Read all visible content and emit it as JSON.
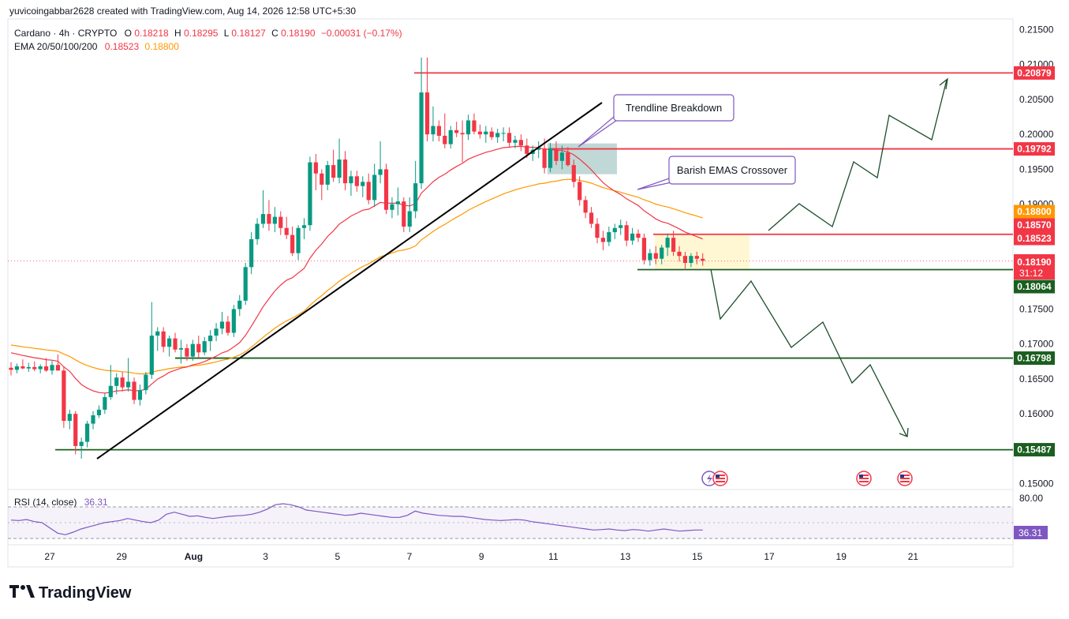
{
  "header": {
    "attribution": "yuvicoingabbar2628 created with TradingView.com, Aug 14, 2026 12:58 UTC+5:30",
    "symbol_line": "Cardano · 4h · CRYPTO",
    "open_label": "O",
    "open": "0.18218",
    "high_label": "H",
    "high": "0.18295",
    "low_label": "L",
    "low": "0.18127",
    "close_label": "C",
    "close": "0.18190",
    "change": "−0.00031 (−0.17%)",
    "ema_label": "EMA 20/50/100/200",
    "ema_value_1": "0.18523",
    "ema_value_2": "0.18800"
  },
  "rsi": {
    "label": "RSI (14, close)",
    "value": "36.31",
    "upper_band": "80.00",
    "badge": "36.31"
  },
  "annotations": {
    "trendline_breakdown": "Trendline Breakdown",
    "ema_crossover": "Barish EMAS Crossover"
  },
  "badges": {
    "r_20879": "0.20879",
    "r_19792": "0.19792",
    "ema_18800": "0.18800",
    "lvl_18570": "0.18570",
    "ema_18523": "0.18523",
    "price": "0.18190",
    "countdown": "31:12",
    "s_18064": "0.18064",
    "s_16798": "0.16798",
    "s_15487": "0.15487"
  },
  "footer": {
    "logo_text": "TradingView"
  },
  "colors": {
    "up": "#089981",
    "down": "#f23645",
    "ema_fast": "#f23645",
    "ema_slow": "#ff9800",
    "resistance": "#f23645",
    "support": "#1b5e20",
    "rsi": "#7e57c2",
    "trendline": "#000000"
  },
  "chart_data": {
    "type": "candlestick",
    "symbol": "Cardano",
    "timeframe": "4h",
    "ylim": [
      0.1494,
      0.2155
    ],
    "y_ticks": [
      "0.21500",
      "0.21000",
      "0.20500",
      "0.20000",
      "0.19500",
      "0.19000",
      "0.18500",
      "0.18000",
      "0.17500",
      "0.17000",
      "0.16500",
      "0.16000",
      "0.15500",
      "0.15000"
    ],
    "x_ticks": [
      {
        "label": "27",
        "day": 27
      },
      {
        "label": "29",
        "day": 29
      },
      {
        "label": "Aug",
        "day": 31
      },
      {
        "label": "3",
        "day": 33
      },
      {
        "label": "5",
        "day": 35
      },
      {
        "label": "7",
        "day": 37
      },
      {
        "label": "9",
        "day": 39
      },
      {
        "label": "11",
        "day": 41
      },
      {
        "label": "13",
        "day": 43
      },
      {
        "label": "15",
        "day": 45
      },
      {
        "label": "17",
        "day": 47
      },
      {
        "label": "19",
        "day": 49
      },
      {
        "label": "21",
        "day": 51
      }
    ],
    "candles": [
      {
        "o": 0.1666,
        "h": 0.1674,
        "l": 0.1655,
        "c": 0.1663
      },
      {
        "o": 0.1663,
        "h": 0.1672,
        "l": 0.1658,
        "c": 0.1668
      },
      {
        "o": 0.1668,
        "h": 0.1678,
        "l": 0.1664,
        "c": 0.1665
      },
      {
        "o": 0.1665,
        "h": 0.1673,
        "l": 0.166,
        "c": 0.1667
      },
      {
        "o": 0.1667,
        "h": 0.1675,
        "l": 0.1661,
        "c": 0.1664
      },
      {
        "o": 0.1664,
        "h": 0.1671,
        "l": 0.1658,
        "c": 0.1668
      },
      {
        "o": 0.1668,
        "h": 0.168,
        "l": 0.166,
        "c": 0.1662
      },
      {
        "o": 0.1662,
        "h": 0.1676,
        "l": 0.1656,
        "c": 0.167
      },
      {
        "o": 0.167,
        "h": 0.1685,
        "l": 0.1664,
        "c": 0.1662
      },
      {
        "o": 0.1662,
        "h": 0.1668,
        "l": 0.158,
        "c": 0.159
      },
      {
        "o": 0.159,
        "h": 0.1606,
        "l": 0.1578,
        "c": 0.16
      },
      {
        "o": 0.16,
        "h": 0.1604,
        "l": 0.1542,
        "c": 0.1554
      },
      {
        "o": 0.1554,
        "h": 0.1566,
        "l": 0.1536,
        "c": 0.156
      },
      {
        "o": 0.156,
        "h": 0.159,
        "l": 0.1552,
        "c": 0.1586
      },
      {
        "o": 0.1586,
        "h": 0.1604,
        "l": 0.1578,
        "c": 0.1598
      },
      {
        "o": 0.1598,
        "h": 0.1612,
        "l": 0.1594,
        "c": 0.1606
      },
      {
        "o": 0.1606,
        "h": 0.163,
        "l": 0.16,
        "c": 0.1624
      },
      {
        "o": 0.1624,
        "h": 0.167,
        "l": 0.162,
        "c": 0.164
      },
      {
        "o": 0.164,
        "h": 0.1658,
        "l": 0.1628,
        "c": 0.1652
      },
      {
        "o": 0.1652,
        "h": 0.166,
        "l": 0.1632,
        "c": 0.1638
      },
      {
        "o": 0.1638,
        "h": 0.168,
        "l": 0.1632,
        "c": 0.1646
      },
      {
        "o": 0.1646,
        "h": 0.1652,
        "l": 0.1614,
        "c": 0.162
      },
      {
        "o": 0.162,
        "h": 0.1642,
        "l": 0.1612,
        "c": 0.1634
      },
      {
        "o": 0.1634,
        "h": 0.166,
        "l": 0.1628,
        "c": 0.1656
      },
      {
        "o": 0.1656,
        "h": 0.176,
        "l": 0.165,
        "c": 0.1712
      },
      {
        "o": 0.1712,
        "h": 0.1724,
        "l": 0.169,
        "c": 0.1718
      },
      {
        "o": 0.1718,
        "h": 0.1724,
        "l": 0.1688,
        "c": 0.1696
      },
      {
        "o": 0.1696,
        "h": 0.1712,
        "l": 0.1682,
        "c": 0.1708
      },
      {
        "o": 0.1708,
        "h": 0.1716,
        "l": 0.1688,
        "c": 0.1692
      },
      {
        "o": 0.1692,
        "h": 0.1706,
        "l": 0.1672,
        "c": 0.1694
      },
      {
        "o": 0.1694,
        "h": 0.17,
        "l": 0.1676,
        "c": 0.1682
      },
      {
        "o": 0.1682,
        "h": 0.1706,
        "l": 0.1676,
        "c": 0.17
      },
      {
        "o": 0.17,
        "h": 0.1712,
        "l": 0.168,
        "c": 0.1688
      },
      {
        "o": 0.1688,
        "h": 0.171,
        "l": 0.1684,
        "c": 0.1704
      },
      {
        "o": 0.1704,
        "h": 0.172,
        "l": 0.169,
        "c": 0.1712
      },
      {
        "o": 0.1712,
        "h": 0.173,
        "l": 0.1704,
        "c": 0.1722
      },
      {
        "o": 0.1722,
        "h": 0.1746,
        "l": 0.1714,
        "c": 0.1732
      },
      {
        "o": 0.1732,
        "h": 0.174,
        "l": 0.1712,
        "c": 0.1716
      },
      {
        "o": 0.1716,
        "h": 0.1756,
        "l": 0.171,
        "c": 0.175
      },
      {
        "o": 0.175,
        "h": 0.177,
        "l": 0.174,
        "c": 0.1762
      },
      {
        "o": 0.1762,
        "h": 0.1816,
        "l": 0.1756,
        "c": 0.181
      },
      {
        "o": 0.181,
        "h": 0.186,
        "l": 0.18,
        "c": 0.185
      },
      {
        "o": 0.185,
        "h": 0.188,
        "l": 0.1842,
        "c": 0.1872
      },
      {
        "o": 0.1872,
        "h": 0.192,
        "l": 0.1866,
        "c": 0.1886
      },
      {
        "o": 0.1886,
        "h": 0.1906,
        "l": 0.1862,
        "c": 0.1872
      },
      {
        "o": 0.1872,
        "h": 0.1896,
        "l": 0.186,
        "c": 0.1882
      },
      {
        "o": 0.1882,
        "h": 0.189,
        "l": 0.1856,
        "c": 0.1866
      },
      {
        "o": 0.1866,
        "h": 0.1882,
        "l": 0.185,
        "c": 0.1856
      },
      {
        "o": 0.1856,
        "h": 0.1868,
        "l": 0.1826,
        "c": 0.183
      },
      {
        "o": 0.183,
        "h": 0.187,
        "l": 0.182,
        "c": 0.1866
      },
      {
        "o": 0.1866,
        "h": 0.188,
        "l": 0.185,
        "c": 0.187
      },
      {
        "o": 0.187,
        "h": 0.1968,
        "l": 0.1862,
        "c": 0.196
      },
      {
        "o": 0.196,
        "h": 0.1972,
        "l": 0.192,
        "c": 0.1944
      },
      {
        "o": 0.1944,
        "h": 0.195,
        "l": 0.1906,
        "c": 0.1928
      },
      {
        "o": 0.1928,
        "h": 0.1962,
        "l": 0.192,
        "c": 0.1956
      },
      {
        "o": 0.1956,
        "h": 0.1978,
        "l": 0.1932,
        "c": 0.1938
      },
      {
        "o": 0.1938,
        "h": 0.1994,
        "l": 0.193,
        "c": 0.1964
      },
      {
        "o": 0.1964,
        "h": 0.1976,
        "l": 0.192,
        "c": 0.193
      },
      {
        "o": 0.193,
        "h": 0.1948,
        "l": 0.1912,
        "c": 0.194
      },
      {
        "o": 0.194,
        "h": 0.1948,
        "l": 0.1918,
        "c": 0.1926
      },
      {
        "o": 0.1926,
        "h": 0.194,
        "l": 0.191,
        "c": 0.1932
      },
      {
        "o": 0.1932,
        "h": 0.1944,
        "l": 0.19,
        "c": 0.1906
      },
      {
        "o": 0.1906,
        "h": 0.1958,
        "l": 0.1896,
        "c": 0.1942
      },
      {
        "o": 0.1942,
        "h": 0.199,
        "l": 0.193,
        "c": 0.195
      },
      {
        "o": 0.195,
        "h": 0.1958,
        "l": 0.1886,
        "c": 0.1892
      },
      {
        "o": 0.1892,
        "h": 0.191,
        "l": 0.188,
        "c": 0.19
      },
      {
        "o": 0.19,
        "h": 0.1924,
        "l": 0.1884,
        "c": 0.1904
      },
      {
        "o": 0.1904,
        "h": 0.191,
        "l": 0.186,
        "c": 0.1868
      },
      {
        "o": 0.1868,
        "h": 0.191,
        "l": 0.186,
        "c": 0.189
      },
      {
        "o": 0.189,
        "h": 0.1962,
        "l": 0.188,
        "c": 0.193
      },
      {
        "o": 0.193,
        "h": 0.211,
        "l": 0.1922,
        "c": 0.206
      },
      {
        "o": 0.206,
        "h": 0.211,
        "l": 0.199,
        "c": 0.2
      },
      {
        "o": 0.2,
        "h": 0.204,
        "l": 0.199,
        "c": 0.2012
      },
      {
        "o": 0.2012,
        "h": 0.202,
        "l": 0.199,
        "c": 0.1998
      },
      {
        "o": 0.1998,
        "h": 0.203,
        "l": 0.198,
        "c": 0.1986
      },
      {
        "o": 0.1986,
        "h": 0.2012,
        "l": 0.198,
        "c": 0.2006
      },
      {
        "o": 0.2006,
        "h": 0.2018,
        "l": 0.1996,
        "c": 0.2002
      },
      {
        "o": 0.2002,
        "h": 0.202,
        "l": 0.196,
        "c": 0.2
      },
      {
        "o": 0.2,
        "h": 0.2028,
        "l": 0.1992,
        "c": 0.202
      },
      {
        "o": 0.202,
        "h": 0.203,
        "l": 0.2,
        "c": 0.2004
      },
      {
        "o": 0.2004,
        "h": 0.2014,
        "l": 0.1994,
        "c": 0.2
      },
      {
        "o": 0.2,
        "h": 0.2012,
        "l": 0.1988,
        "c": 0.2004
      },
      {
        "o": 0.2004,
        "h": 0.201,
        "l": 0.1992,
        "c": 0.1996
      },
      {
        "o": 0.1996,
        "h": 0.2008,
        "l": 0.1988,
        "c": 0.2002
      },
      {
        "o": 0.2002,
        "h": 0.201,
        "l": 0.199,
        "c": 0.2002
      },
      {
        "o": 0.2002,
        "h": 0.201,
        "l": 0.1982,
        "c": 0.1988
      },
      {
        "o": 0.1988,
        "h": 0.1998,
        "l": 0.198,
        "c": 0.1992
      },
      {
        "o": 0.1992,
        "h": 0.2,
        "l": 0.1976,
        "c": 0.1984
      },
      {
        "o": 0.1984,
        "h": 0.1994,
        "l": 0.1966,
        "c": 0.1972
      },
      {
        "o": 0.1972,
        "h": 0.1984,
        "l": 0.1962,
        "c": 0.1978
      },
      {
        "o": 0.1978,
        "h": 0.199,
        "l": 0.1966,
        "c": 0.198
      },
      {
        "o": 0.198,
        "h": 0.1994,
        "l": 0.1944,
        "c": 0.1952
      },
      {
        "o": 0.1952,
        "h": 0.1988,
        "l": 0.1946,
        "c": 0.198
      },
      {
        "o": 0.198,
        "h": 0.199,
        "l": 0.1956,
        "c": 0.1962
      },
      {
        "o": 0.1962,
        "h": 0.1984,
        "l": 0.195,
        "c": 0.1974
      },
      {
        "o": 0.1974,
        "h": 0.1982,
        "l": 0.1954,
        "c": 0.1956
      },
      {
        "o": 0.1956,
        "h": 0.1964,
        "l": 0.1924,
        "c": 0.1932
      },
      {
        "o": 0.1932,
        "h": 0.194,
        "l": 0.1898,
        "c": 0.1906
      },
      {
        "o": 0.1906,
        "h": 0.1912,
        "l": 0.188,
        "c": 0.1888
      },
      {
        "o": 0.1888,
        "h": 0.1896,
        "l": 0.1866,
        "c": 0.1872
      },
      {
        "o": 0.1872,
        "h": 0.188,
        "l": 0.1844,
        "c": 0.1852
      },
      {
        "o": 0.1852,
        "h": 0.1862,
        "l": 0.1834,
        "c": 0.1846
      },
      {
        "o": 0.1846,
        "h": 0.1868,
        "l": 0.184,
        "c": 0.186
      },
      {
        "o": 0.186,
        "h": 0.1872,
        "l": 0.185,
        "c": 0.1866
      },
      {
        "o": 0.1866,
        "h": 0.1878,
        "l": 0.1856,
        "c": 0.187
      },
      {
        "o": 0.187,
        "h": 0.1876,
        "l": 0.184,
        "c": 0.1848
      },
      {
        "o": 0.1848,
        "h": 0.1866,
        "l": 0.1842,
        "c": 0.1858
      },
      {
        "o": 0.1858,
        "h": 0.1864,
        "l": 0.1846,
        "c": 0.1852
      },
      {
        "o": 0.1852,
        "h": 0.1858,
        "l": 0.1814,
        "c": 0.182
      },
      {
        "o": 0.182,
        "h": 0.1836,
        "l": 0.1812,
        "c": 0.183
      },
      {
        "o": 0.183,
        "h": 0.184,
        "l": 0.1814,
        "c": 0.1822
      },
      {
        "o": 0.1822,
        "h": 0.1842,
        "l": 0.1814,
        "c": 0.1838
      },
      {
        "o": 0.1838,
        "h": 0.1858,
        "l": 0.1826,
        "c": 0.1852
      },
      {
        "o": 0.1852,
        "h": 0.1862,
        "l": 0.1826,
        "c": 0.1832
      },
      {
        "o": 0.1832,
        "h": 0.184,
        "l": 0.1818,
        "c": 0.1826
      },
      {
        "o": 0.1826,
        "h": 0.1832,
        "l": 0.1808,
        "c": 0.1816
      },
      {
        "o": 0.1816,
        "h": 0.183,
        "l": 0.181,
        "c": 0.1826
      },
      {
        "o": 0.1826,
        "h": 0.1832,
        "l": 0.1814,
        "c": 0.1822
      },
      {
        "o": 0.1822,
        "h": 0.183,
        "l": 0.1812,
        "c": 0.1819
      }
    ],
    "ema_fast_label": "0.18523",
    "ema_slow_label": "0.18800",
    "horizontal_levels": [
      {
        "value": 0.20879,
        "kind": "resistance"
      },
      {
        "value": 0.19792,
        "kind": "resistance"
      },
      {
        "value": 0.1857,
        "kind": "resistance"
      },
      {
        "value": 0.18064,
        "kind": "support"
      },
      {
        "value": 0.16798,
        "kind": "support"
      },
      {
        "value": 0.15487,
        "kind": "support"
      }
    ],
    "rsi_series": [
      55,
      54,
      56,
      52,
      50,
      40,
      30,
      27,
      32,
      38,
      42,
      46,
      50,
      52,
      54,
      58,
      55,
      52,
      50,
      55,
      66,
      70,
      66,
      62,
      63,
      60,
      58,
      60,
      62,
      63,
      64,
      66,
      70,
      76,
      84,
      86,
      84,
      80,
      74,
      72,
      70,
      68,
      66,
      64,
      65,
      68,
      66,
      64,
      62,
      60,
      60,
      64,
      72,
      68,
      66,
      64,
      63,
      62,
      62,
      60,
      58,
      56,
      55,
      54,
      55,
      56,
      55,
      52,
      50,
      48,
      46,
      44,
      42,
      40,
      38,
      36,
      37,
      38,
      36,
      35,
      37,
      36,
      34,
      36,
      38,
      36,
      34,
      35,
      36,
      36
    ]
  }
}
